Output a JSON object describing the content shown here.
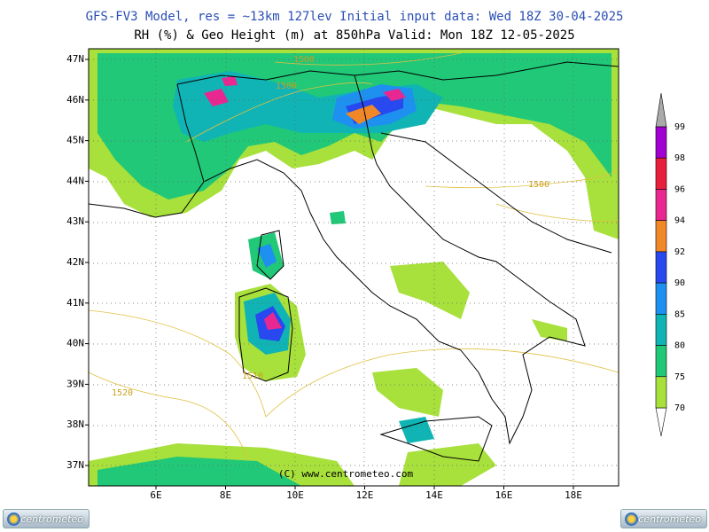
{
  "header": {
    "line1": "GFS-FV3 Model, res = ~13km 127lev   Initial input data: Wed 18Z 30-04-2025",
    "line2": "RH (%) & Geo Height (m) at 850hPa  Valid: Mon 18Z 12-05-2025"
  },
  "lat_labels": [
    "47N",
    "46N",
    "45N",
    "44N",
    "43N",
    "42N",
    "41N",
    "40N",
    "39N",
    "38N",
    "37N"
  ],
  "lon_labels": [
    "6E",
    "8E",
    "10E",
    "12E",
    "14E",
    "16E",
    "18E"
  ],
  "contour_labels": [
    "1500",
    "1500",
    "1500",
    "1510",
    "1520"
  ],
  "copyright": "(C) www.centrometeo.com",
  "colorbar": {
    "levels": [
      99,
      98,
      96,
      94,
      92,
      90,
      85,
      80,
      75,
      70
    ],
    "colors": [
      "#a000d0",
      "#e8203c",
      "#e82890",
      "#f08828",
      "#2848f0",
      "#1e90f0",
      "#10b4b4",
      "#20c878",
      "#a8e03c"
    ]
  },
  "logos": [
    "centrometeo",
    "centrometeo"
  ]
}
